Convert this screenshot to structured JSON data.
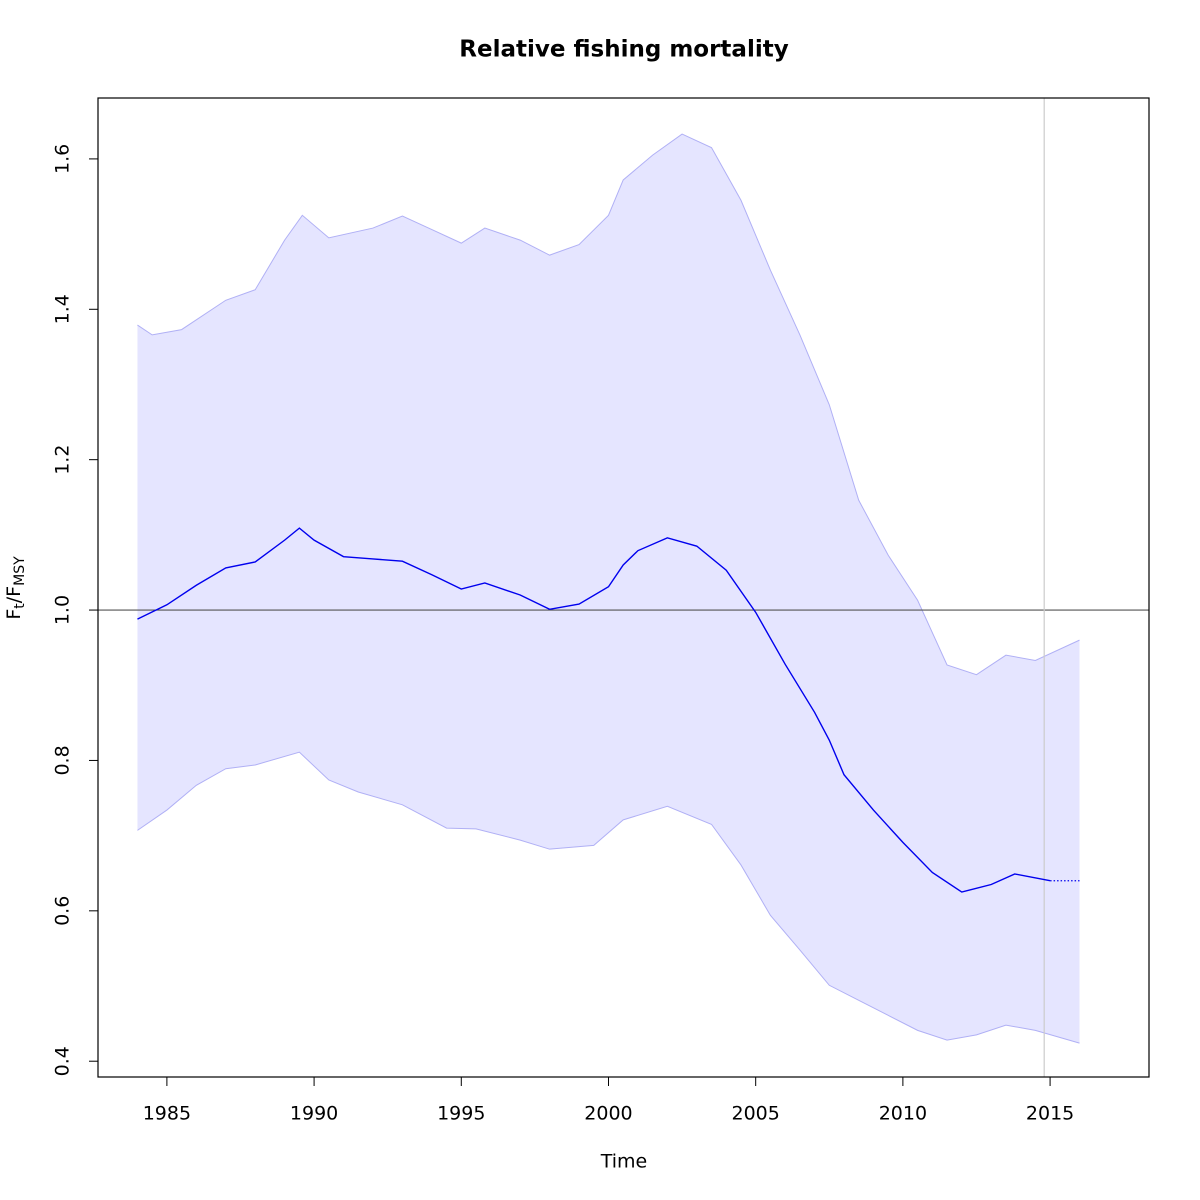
{
  "chart_data": {
    "type": "line",
    "title": "Relative fishing mortality",
    "xlabel": "Time",
    "ylabel": [
      "F",
      "t",
      "/F",
      "MSY"
    ],
    "xlim": [
      1982.66,
      2018.36
    ],
    "ylim": [
      0.379,
      1.681
    ],
    "xticks": [
      1985,
      1990,
      1995,
      2000,
      2005,
      2010,
      2015
    ],
    "yticks": [
      {
        "value": 0.4,
        "label": "0.4"
      },
      {
        "value": 0.6,
        "label": "0.6"
      },
      {
        "value": 0.8,
        "label": "0.8"
      },
      {
        "value": 1.0,
        "label": "1.0"
      },
      {
        "value": 1.2,
        "label": "1.2"
      },
      {
        "value": 1.4,
        "label": "1.4"
      },
      {
        "value": 1.6,
        "label": "1.6"
      }
    ],
    "hline": 1,
    "vline": 2014.8,
    "band_color": "#e5e5ff",
    "band_edge_color": "#b0b0f5",
    "estimate": {
      "color": "#0000ee",
      "x": [
        1984,
        1985,
        1986,
        1987,
        1988,
        1989,
        1989.5,
        1990,
        1991,
        1992,
        1993,
        1994,
        1995,
        1995.8,
        1997,
        1998,
        1999,
        2000,
        2000.5,
        2001,
        2002,
        2003,
        2004,
        2005,
        2006,
        2007,
        2007.5,
        2008,
        2009,
        2010,
        2011,
        2012,
        2013,
        2013.8,
        2015
      ],
      "values": [
        0.988,
        1.007,
        1.033,
        1.056,
        1.064,
        1.093,
        1.109,
        1.093,
        1.071,
        1.068,
        1.065,
        1.047,
        1.028,
        1.036,
        1.02,
        1.001,
        1.008,
        1.031,
        1.06,
        1.079,
        1.096,
        1.085,
        1.053,
        0.997,
        0.928,
        0.864,
        0.827,
        0.781,
        0.734,
        0.691,
        0.651,
        0.625,
        0.635,
        0.649,
        0.64
      ]
    },
    "projection": {
      "color": "#0000ee",
      "x": [
        2015,
        2016
      ],
      "values": [
        0.64,
        0.64
      ]
    },
    "upper": {
      "x": [
        1984,
        1984.5,
        1985.5,
        1987,
        1988,
        1989,
        1989.6,
        1990.5,
        1992,
        1993,
        1994,
        1995,
        1995.8,
        1997,
        1998,
        1999,
        2000,
        2000.5,
        2001.5,
        2002.5,
        2003.5,
        2004.5,
        2005.5,
        2006.5,
        2007.5,
        2008.5,
        2009.5,
        2010.5,
        2011.5,
        2012.5,
        2013.5,
        2014.5,
        2016
      ],
      "values": [
        1.379,
        1.366,
        1.373,
        1.412,
        1.426,
        1.492,
        1.525,
        1.495,
        1.508,
        1.524,
        1.506,
        1.488,
        1.508,
        1.492,
        1.472,
        1.486,
        1.525,
        1.572,
        1.605,
        1.633,
        1.615,
        1.545,
        1.452,
        1.366,
        1.273,
        1.146,
        1.073,
        1.013,
        0.927,
        0.914,
        0.94,
        0.933,
        0.96
      ]
    },
    "lower": {
      "x": [
        1984,
        1985,
        1986,
        1987,
        1988,
        1989.5,
        1990.5,
        1991.5,
        1993,
        1994.5,
        1995.5,
        1997,
        1998,
        1999.5,
        2000.5,
        2002,
        2003.5,
        2004.5,
        2005.5,
        2006.5,
        2007.5,
        2008.5,
        2009.5,
        2010.5,
        2011.5,
        2012.5,
        2013.5,
        2014.5,
        2016
      ],
      "values": [
        0.707,
        0.734,
        0.767,
        0.789,
        0.794,
        0.811,
        0.774,
        0.758,
        0.741,
        0.71,
        0.709,
        0.694,
        0.682,
        0.687,
        0.721,
        0.739,
        0.715,
        0.661,
        0.594,
        0.548,
        0.501,
        0.481,
        0.461,
        0.441,
        0.428,
        0.435,
        0.448,
        0.441,
        0.424
      ]
    }
  }
}
